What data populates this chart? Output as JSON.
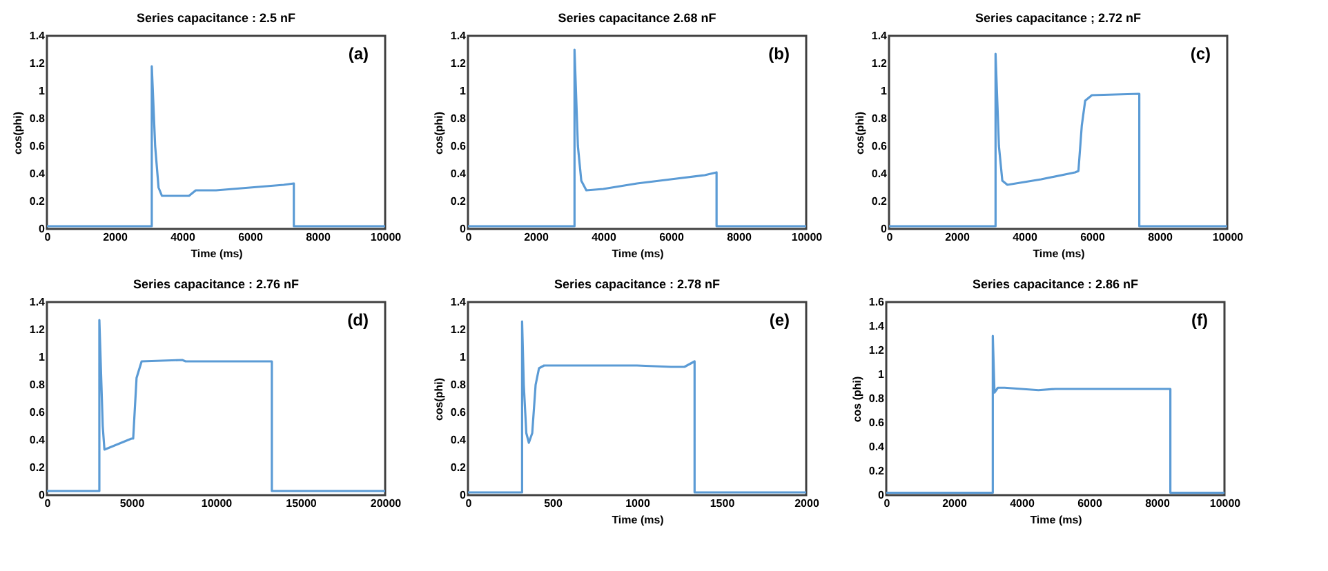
{
  "chart_data": [
    {
      "type": "line",
      "title": "Series capacitance : 2.5 nF",
      "xlabel": "Time (ms)",
      "ylabel": "cos(phi)",
      "annotations": [
        "(a)"
      ],
      "x": [
        0,
        3100,
        3100,
        3200,
        3300,
        3400,
        4200,
        4400,
        5000,
        6000,
        7000,
        7300,
        7300,
        10000
      ],
      "series": [
        {
          "color": "#5b9bd5",
          "values": [
            0.02,
            0.02,
            1.18,
            0.6,
            0.3,
            0.24,
            0.24,
            0.28,
            0.28,
            0.3,
            0.32,
            0.33,
            0.02,
            0.02
          ]
        }
      ],
      "xlim": [
        0,
        10000
      ],
      "xticks": [
        0,
        2000,
        4000,
        6000,
        8000,
        10000
      ],
      "ylim": [
        0,
        1.4
      ],
      "yticks": [
        0,
        0.2,
        0.4,
        0.6,
        0.8,
        1,
        1.2,
        1.4
      ],
      "grid": false,
      "marker": "none",
      "line_style": "solid"
    },
    {
      "type": "line",
      "title": "Series capacitance 2.68 nF",
      "xlabel": "Time (ms)",
      "ylabel": "cos(phi)",
      "annotations": [
        "(b)"
      ],
      "x": [
        0,
        3150,
        3150,
        3250,
        3350,
        3500,
        4000,
        5000,
        6000,
        7000,
        7350,
        7350,
        10000
      ],
      "series": [
        {
          "color": "#5b9bd5",
          "values": [
            0.02,
            0.02,
            1.3,
            0.6,
            0.35,
            0.28,
            0.29,
            0.33,
            0.36,
            0.39,
            0.41,
            0.02,
            0.02
          ]
        }
      ],
      "xlim": [
        0,
        10000
      ],
      "xticks": [
        0,
        2000,
        4000,
        6000,
        8000,
        10000
      ],
      "ylim": [
        0,
        1.4
      ],
      "yticks": [
        0,
        0.2,
        0.4,
        0.6,
        0.8,
        1,
        1.2,
        1.4
      ],
      "grid": false,
      "marker": "none",
      "line_style": "solid"
    },
    {
      "type": "line",
      "title": "Series capacitance ; 2.72 nF",
      "xlabel": "Time (ms)",
      "ylabel": "cos(phi)",
      "annotations": [
        "(c)"
      ],
      "x": [
        0,
        3150,
        3150,
        3250,
        3350,
        3500,
        4500,
        5500,
        5600,
        5700,
        5800,
        6000,
        7400,
        7400,
        10000
      ],
      "series": [
        {
          "color": "#5b9bd5",
          "values": [
            0.02,
            0.02,
            1.27,
            0.6,
            0.35,
            0.32,
            0.36,
            0.41,
            0.42,
            0.75,
            0.93,
            0.97,
            0.98,
            0.02,
            0.02
          ]
        }
      ],
      "xlim": [
        0,
        10000
      ],
      "xticks": [
        0,
        2000,
        4000,
        6000,
        8000,
        10000
      ],
      "ylim": [
        0,
        1.4
      ],
      "yticks": [
        0,
        0.2,
        0.4,
        0.6,
        0.8,
        1,
        1.2,
        1.4
      ],
      "grid": false,
      "marker": "none",
      "line_style": "solid"
    },
    {
      "type": "line",
      "title": "Series capacitance : 2.76 nF",
      "annotations": [
        "(d)"
      ],
      "x": [
        0,
        3100,
        3100,
        3300,
        3400,
        5000,
        5100,
        5300,
        5600,
        8000,
        8200,
        13300,
        13300,
        20000
      ],
      "series": [
        {
          "color": "#5b9bd5",
          "values": [
            0.03,
            0.03,
            1.27,
            0.5,
            0.33,
            0.41,
            0.41,
            0.85,
            0.97,
            0.98,
            0.97,
            0.97,
            0.03,
            0.03
          ]
        }
      ],
      "xlim": [
        0,
        20000
      ],
      "xticks": [
        0,
        5000,
        10000,
        15000,
        20000
      ],
      "ylim": [
        0,
        1.4
      ],
      "yticks": [
        0,
        0.2,
        0.4,
        0.6,
        0.8,
        1,
        1.2,
        1.4
      ],
      "grid": false,
      "marker": "none",
      "line_style": "solid"
    },
    {
      "type": "line",
      "title": "Series capacitance : 2.78 nF",
      "xlabel": "Time (ms)",
      "ylabel": "cos(phi)",
      "annotations": [
        "(e)"
      ],
      "x": [
        0,
        320,
        320,
        330,
        345,
        360,
        380,
        400,
        420,
        450,
        1000,
        1200,
        1280,
        1340,
        1340,
        2000
      ],
      "series": [
        {
          "color": "#5b9bd5",
          "values": [
            0.02,
            0.02,
            1.26,
            0.8,
            0.45,
            0.38,
            0.45,
            0.8,
            0.92,
            0.94,
            0.94,
            0.93,
            0.93,
            0.97,
            0.02,
            0.02
          ]
        }
      ],
      "xlim": [
        0,
        2000
      ],
      "xticks": [
        0,
        500,
        1000,
        1500,
        2000
      ],
      "ylim": [
        0,
        1.4
      ],
      "yticks": [
        0,
        0.2,
        0.4,
        0.6,
        0.8,
        1,
        1.2,
        1.4
      ],
      "grid": false,
      "marker": "none",
      "line_style": "solid"
    },
    {
      "type": "line",
      "title": "Series capacitance : 2.86 nF",
      "xlabel": "Time (ms)",
      "ylabel": "cos (phi)",
      "annotations": [
        "(f)"
      ],
      "x": [
        0,
        3150,
        3150,
        3200,
        3300,
        3500,
        4500,
        5000,
        8400,
        8400,
        10000
      ],
      "series": [
        {
          "color": "#5b9bd5",
          "values": [
            0.02,
            0.02,
            1.32,
            0.85,
            0.89,
            0.89,
            0.87,
            0.88,
            0.88,
            0.02,
            0.02
          ]
        }
      ],
      "xlim": [
        0,
        10000
      ],
      "xticks": [
        0,
        2000,
        4000,
        6000,
        8000,
        10000
      ],
      "ylim": [
        0,
        1.6
      ],
      "yticks": [
        0,
        0.2,
        0.4,
        0.6,
        0.8,
        1,
        1.2,
        1.4,
        1.6
      ],
      "grid": false,
      "marker": "none",
      "line_style": "solid"
    }
  ]
}
